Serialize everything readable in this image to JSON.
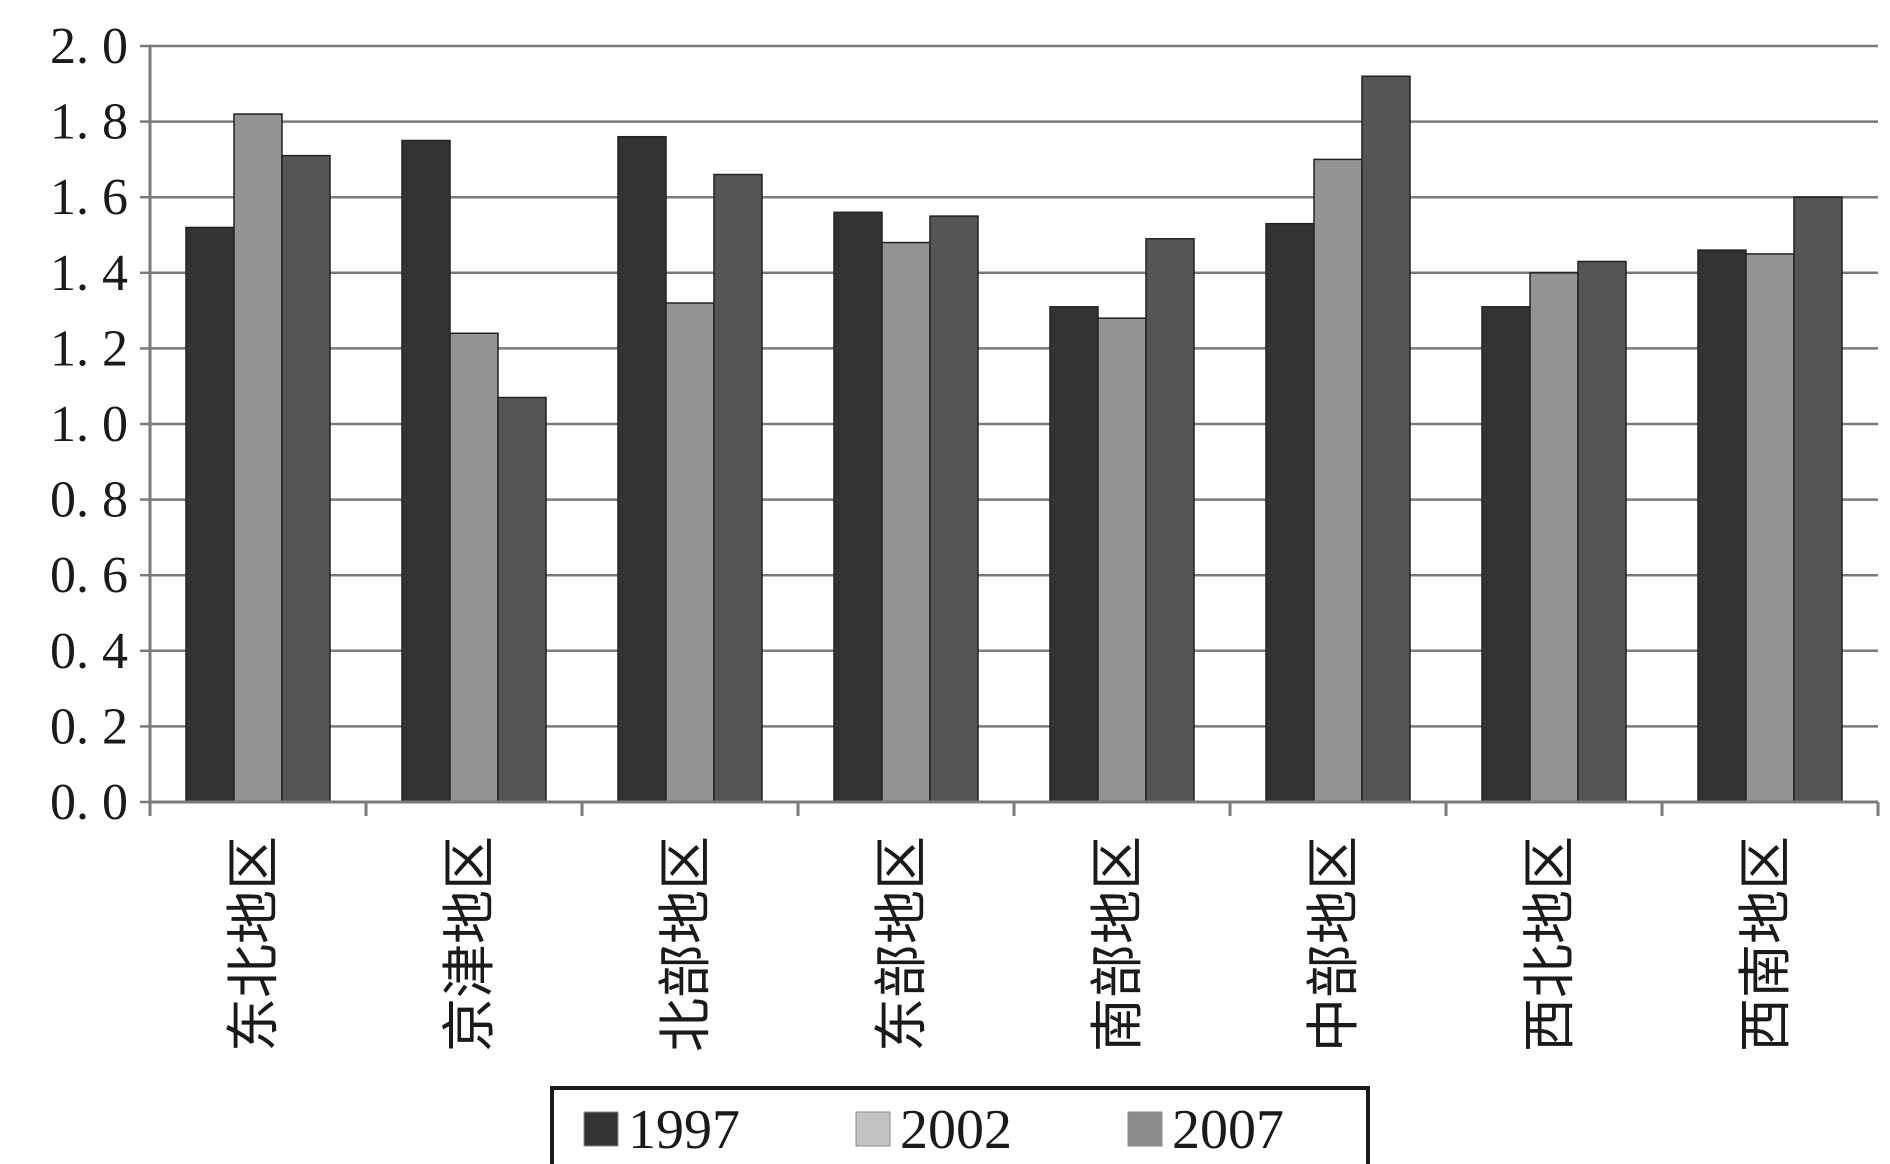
{
  "chart_data": {
    "type": "bar",
    "categories": [
      "东北地区",
      "京津地区",
      "北部地区",
      "东部地区",
      "南部地区",
      "中部地区",
      "西北地区",
      "西南地区"
    ],
    "series": [
      {
        "name": "1997",
        "color": "#333333",
        "values": [
          1.52,
          1.75,
          1.76,
          1.56,
          1.31,
          1.53,
          1.31,
          1.46
        ]
      },
      {
        "name": "2002",
        "color": "#939393",
        "values": [
          1.82,
          1.24,
          1.32,
          1.48,
          1.28,
          1.7,
          1.4,
          1.45
        ]
      },
      {
        "name": "2007",
        "color": "#555555",
        "values": [
          1.71,
          1.07,
          1.66,
          1.55,
          1.49,
          1.92,
          1.43,
          1.6
        ]
      }
    ],
    "legend_swatch_colors": [
      "#333333",
      "#c4c4c4",
      "#8c8c8c"
    ],
    "ylim": [
      0,
      2.0
    ],
    "yticks": [
      "0. 0",
      "0. 2",
      "0. 4",
      "0. 6",
      "0. 8",
      "1. 0",
      "1. 2",
      "1. 4",
      "1. 6",
      "1. 8",
      "2. 0"
    ],
    "grid": true,
    "legend_position": "bottom",
    "title": "",
    "xlabel": "",
    "ylabel": ""
  }
}
